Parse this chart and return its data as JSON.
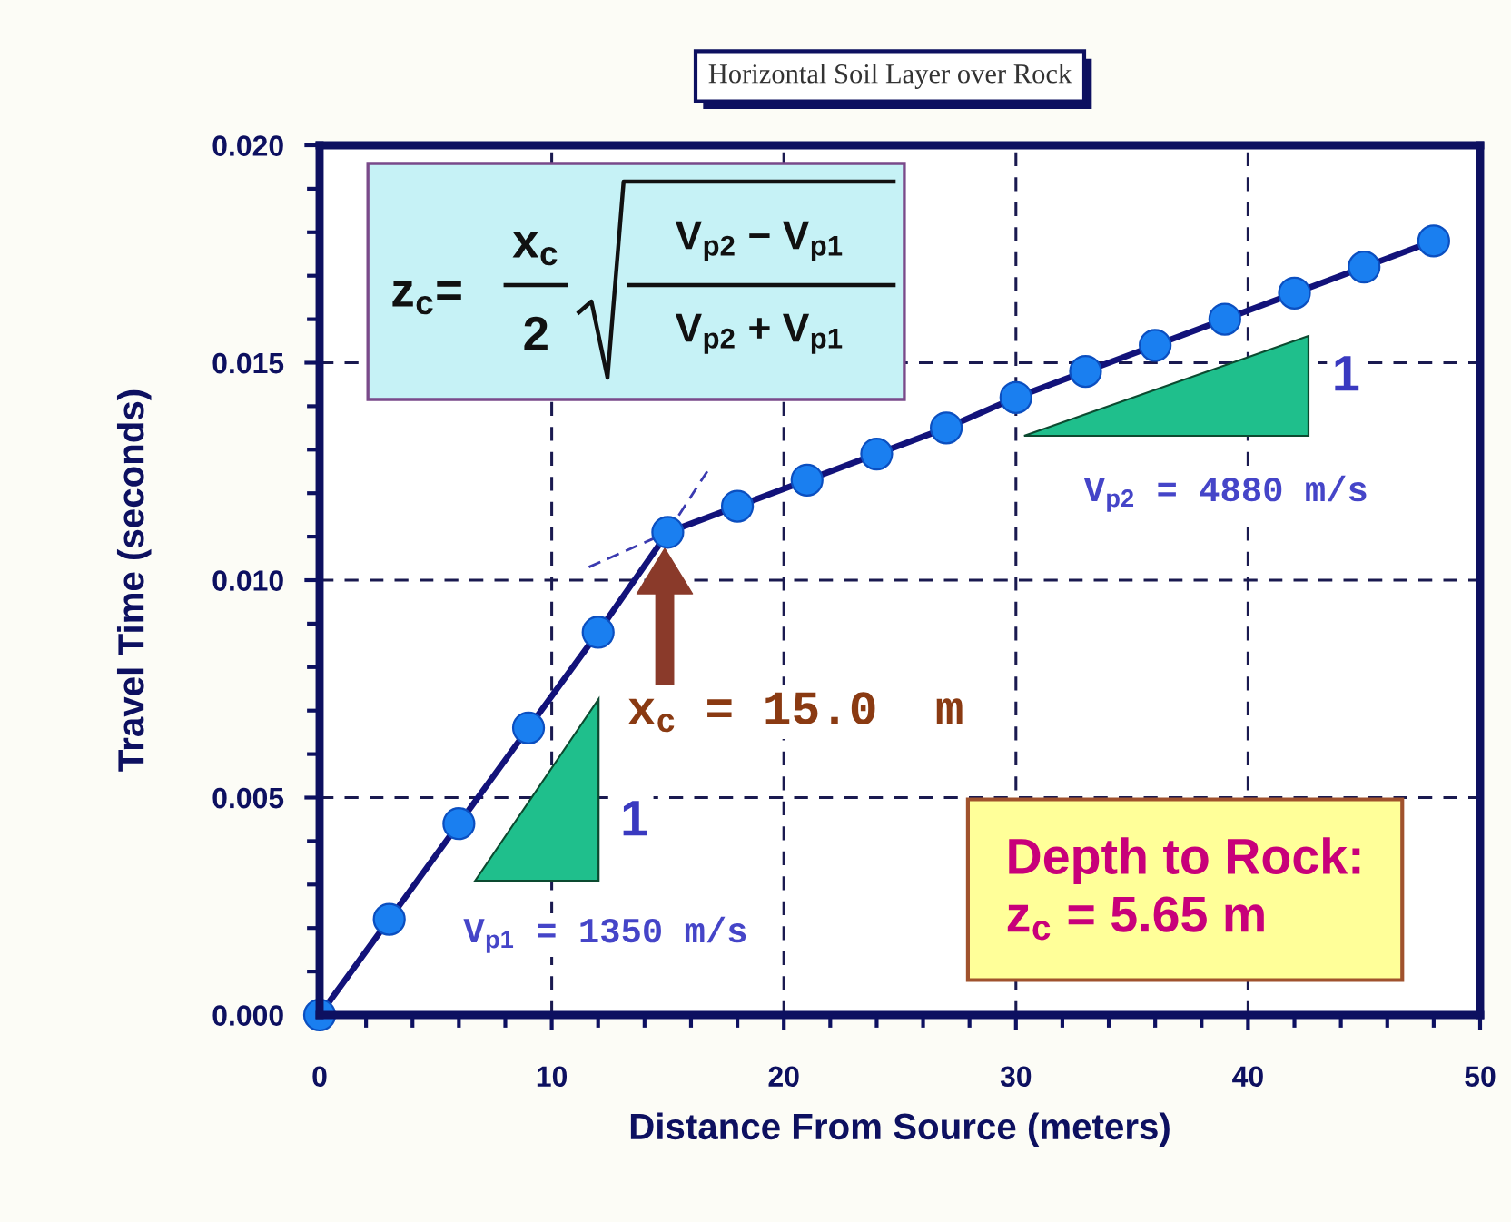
{
  "chart_data": {
    "type": "line",
    "title": "Horizontal Soil Layer over Rock",
    "xlabel": "Distance From Source (meters)",
    "ylabel": "Travel Time (seconds)",
    "x": [
      0,
      3,
      6,
      9,
      12,
      15,
      18,
      21,
      24,
      27,
      30,
      33,
      36,
      39,
      42,
      45,
      48
    ],
    "series": [
      {
        "color": "#3a3ab0",
        "line_style": "dashed",
        "x": [
          11.6,
          15
        ],
        "values": [
          0.0103,
          0.0111
        ]
      },
      {
        "color": "#3a3ab0",
        "line_style": "dashed",
        "x": [
          15,
          16.7
        ],
        "values": [
          0.0111,
          0.0125
        ]
      },
      {
        "color": "#12127a",
        "values": [
          0,
          0.0022,
          0.0044,
          0.0066,
          0.0088,
          0.0111,
          0.0117,
          0.0123,
          0.0129,
          0.0135,
          0.0142,
          0.0148,
          0.0154,
          0.016,
          0.0166,
          0.0172,
          0.0178
        ]
      },
      {
        "type": "scatter",
        "color": "#1a7ff0",
        "marker": "circle",
        "values": [
          0,
          0.0022,
          0.0044,
          0.0066,
          0.0088,
          0.0111,
          0.0117,
          0.0123,
          0.0129,
          0.0135,
          0.0142,
          0.0148,
          0.0154,
          0.016,
          0.0166,
          0.0172,
          0.0178
        ]
      }
    ],
    "annotations": [
      "z$_{c}$=",
      "x$_{c}$",
      "2",
      "V$_{p2}$ − V$_{p1}$",
      "V$_{p2}$ + V$_{p1}$",
      "1",
      "V$_{p1}$ = 1350 m/s",
      "1",
      "V$_{p2}$ = 4880 m/s",
      "x$_{c}$ = 15.0  m",
      "Depth to Rock:\nz$_{c}$ = 5.65 m"
    ],
    "xlim": [
      0,
      50
    ],
    "ylim": [
      0,
      0.02
    ],
    "xticks": [
      0,
      {
        "value": 2,
        "label": null
      },
      {
        "value": 4,
        "label": null
      },
      {
        "value": 6,
        "label": null
      },
      {
        "value": 8,
        "label": null
      },
      10,
      {
        "value": 12,
        "label": null
      },
      {
        "value": 14,
        "label": null
      },
      {
        "value": 16,
        "label": null
      },
      {
        "value": 18,
        "label": null
      },
      20,
      {
        "value": 22,
        "label": null
      },
      {
        "value": 24,
        "label": null
      },
      {
        "value": 26,
        "label": null
      },
      {
        "value": 28,
        "label": null
      },
      30,
      {
        "value": 32,
        "label": null
      },
      {
        "value": 34,
        "label": null
      },
      {
        "value": 36,
        "label": null
      },
      {
        "value": 38,
        "label": null
      },
      40,
      {
        "value": 42,
        "label": null
      },
      {
        "value": 44,
        "label": null
      },
      {
        "value": 46,
        "label": null
      },
      {
        "value": 48,
        "label": null
      },
      50
    ],
    "yticks": [
      {
        "value": 0,
        "label": "0.000"
      },
      {
        "value": 0.001,
        "label": null
      },
      {
        "value": 0.002,
        "label": null
      },
      {
        "value": 0.003,
        "label": null
      },
      {
        "value": 0.004,
        "label": null
      },
      0.005,
      {
        "value": 0.006,
        "label": null
      },
      {
        "value": 0.007,
        "label": null
      },
      {
        "value": 0.008,
        "label": null
      },
      {
        "value": 0.009,
        "label": null
      },
      {
        "value": 0.01,
        "label": "0.010"
      },
      {
        "value": 0.011,
        "label": null
      },
      {
        "value": 0.012,
        "label": null
      },
      {
        "value": 0.013,
        "label": null
      },
      {
        "value": 0.014,
        "label": null
      },
      0.015,
      {
        "value": 0.016,
        "label": null
      },
      {
        "value": 0.017,
        "label": null
      },
      {
        "value": 0.018,
        "label": null
      },
      {
        "value": 0.019,
        "label": null
      },
      {
        "value": 0.02,
        "label": "0.020"
      }
    ],
    "grid": true
  }
}
